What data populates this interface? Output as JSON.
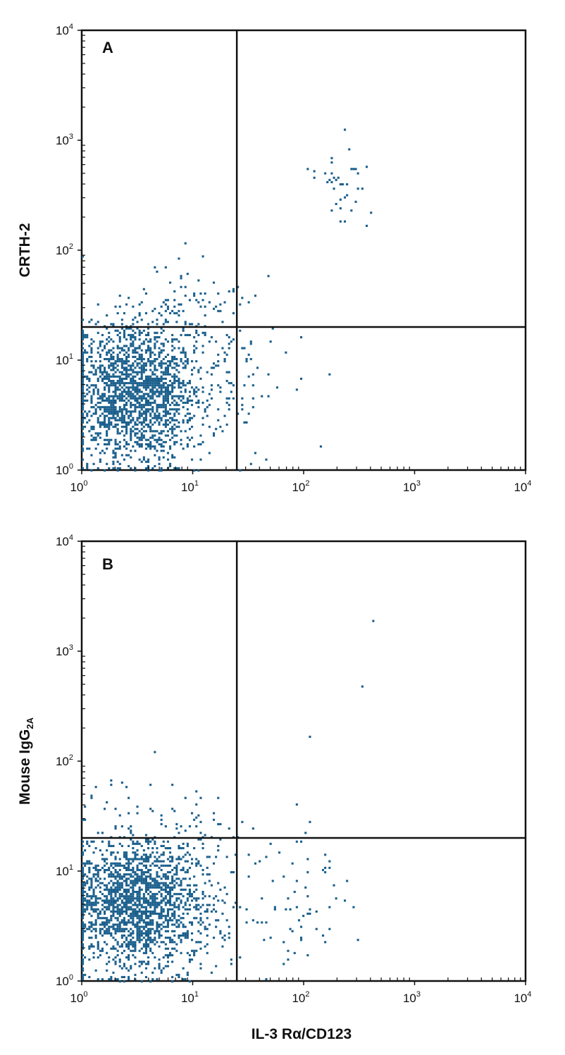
{
  "chart_data": [
    {
      "type": "scatter",
      "panel": "A",
      "ylabel": "CRTH-2",
      "xlabel": "",
      "xscale": "log",
      "yscale": "log",
      "xlim": [
        1,
        10000
      ],
      "ylim": [
        1,
        10000
      ],
      "x_ticks": [
        {
          "base": "10",
          "exp": "0"
        },
        {
          "base": "10",
          "exp": "1"
        },
        {
          "base": "10",
          "exp": "2"
        },
        {
          "base": "10",
          "exp": "3"
        },
        {
          "base": "10",
          "exp": "4"
        }
      ],
      "y_ticks": [
        {
          "base": "10",
          "exp": "0"
        },
        {
          "base": "10",
          "exp": "1"
        },
        {
          "base": "10",
          "exp": "2"
        },
        {
          "base": "10",
          "exp": "3"
        },
        {
          "base": "10",
          "exp": "4"
        }
      ],
      "quadrant_gates": {
        "x": 25,
        "y": 20
      },
      "point_color": "#1a5f8c",
      "clusters": [
        {
          "center": [
            3,
            5
          ],
          "spread_decades": [
            0.3,
            0.32
          ],
          "count": 1800
        },
        {
          "center": [
            6,
            8
          ],
          "spread_decades": [
            0.45,
            0.45
          ],
          "count": 260
        },
        {
          "center": [
            14,
            30
          ],
          "spread_decades": [
            0.28,
            0.2
          ],
          "count": 45
        },
        {
          "center": [
            200,
            400
          ],
          "spread_decades": [
            0.14,
            0.22
          ],
          "count": 38
        },
        {
          "center": [
            50,
            8
          ],
          "spread_decades": [
            0.25,
            0.3
          ],
          "count": 8
        }
      ]
    },
    {
      "type": "scatter",
      "panel": "B",
      "ylabel": "Mouse IgG",
      "ylabel_subscript": "2A",
      "xlabel": "IL-3 Rα/CD123",
      "xscale": "log",
      "yscale": "log",
      "xlim": [
        1,
        10000
      ],
      "ylim": [
        1,
        10000
      ],
      "x_ticks": [
        {
          "base": "10",
          "exp": "0"
        },
        {
          "base": "10",
          "exp": "1"
        },
        {
          "base": "10",
          "exp": "2"
        },
        {
          "base": "10",
          "exp": "3"
        },
        {
          "base": "10",
          "exp": "4"
        }
      ],
      "y_ticks": [
        {
          "base": "10",
          "exp": "0"
        },
        {
          "base": "10",
          "exp": "1"
        },
        {
          "base": "10",
          "exp": "2"
        },
        {
          "base": "10",
          "exp": "3"
        },
        {
          "base": "10",
          "exp": "4"
        }
      ],
      "quadrant_gates": {
        "x": 25,
        "y": 20
      },
      "point_color": "#1a5f8c",
      "clusters": [
        {
          "center": [
            3,
            5
          ],
          "spread_decades": [
            0.3,
            0.3
          ],
          "count": 1800
        },
        {
          "center": [
            6,
            7
          ],
          "spread_decades": [
            0.45,
            0.45
          ],
          "count": 240
        },
        {
          "center": [
            100,
            5
          ],
          "spread_decades": [
            0.2,
            0.28
          ],
          "count": 55
        },
        {
          "center": [
            8,
            25
          ],
          "spread_decades": [
            0.3,
            0.15
          ],
          "count": 15
        }
      ],
      "singles": [
        [
          420,
          1900
        ],
        [
          340,
          480
        ],
        [
          115,
          170
        ]
      ]
    }
  ]
}
